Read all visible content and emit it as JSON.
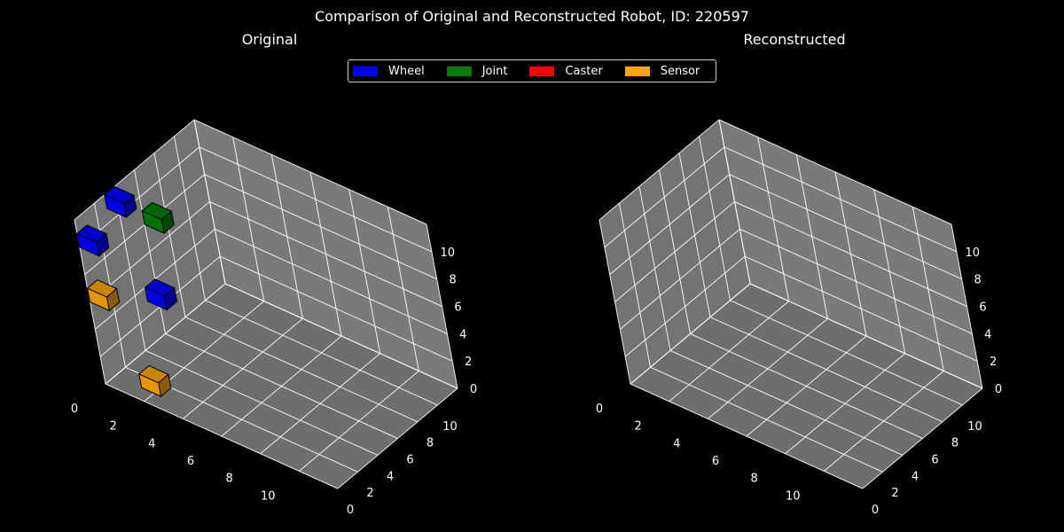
{
  "chart_data": {
    "type": "3d-voxel",
    "title": "Comparison of Original and Reconstructed Robot, ID: 220597",
    "legend": [
      {
        "label": "Wheel",
        "color": "#0000ff"
      },
      {
        "label": "Joint",
        "color": "#007f00"
      },
      {
        "label": "Caster",
        "color": "#ff0000"
      },
      {
        "label": "Sensor",
        "color": "#ffa500"
      }
    ],
    "axis_ticks": {
      "x": [
        "0",
        "2",
        "4",
        "6",
        "8",
        "10"
      ],
      "y": [
        "0",
        "2",
        "4",
        "6",
        "8",
        "10"
      ],
      "z": [
        "0",
        "2",
        "4",
        "6",
        "8",
        "10"
      ]
    },
    "xlim": [
      0,
      12
    ],
    "ylim": [
      0,
      12
    ],
    "zlim": [
      0,
      12
    ],
    "panels": [
      {
        "title": "Original",
        "voxels": [
          {
            "part": "Wheel",
            "x": 0,
            "y": 3,
            "z": 11
          },
          {
            "part": "Wheel",
            "x": 0,
            "y": 0,
            "z": 10
          },
          {
            "part": "Joint",
            "x": 0,
            "y": 6,
            "z": 8
          },
          {
            "part": "Sensor",
            "x": 0,
            "y": 0,
            "z": 6
          },
          {
            "part": "Wheel",
            "x": 0,
            "y": 5,
            "z": 3
          },
          {
            "part": "Sensor",
            "x": 2,
            "y": 0,
            "z": 1
          }
        ]
      },
      {
        "title": "Reconstructed",
        "voxels": []
      }
    ]
  }
}
